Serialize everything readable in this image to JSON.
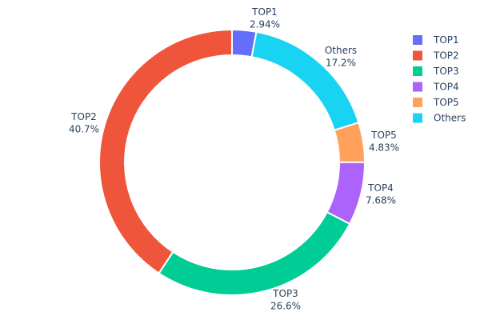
{
  "chart_data": {
    "type": "pie",
    "hole": true,
    "title": "",
    "direction": "clockwise",
    "slices": [
      {
        "label": "TOP1",
        "value": 2.94,
        "text": "2.94%",
        "color": "#636efa"
      },
      {
        "label": "Others",
        "value": 17.2,
        "text": "17.2%",
        "color": "#19d3f3"
      },
      {
        "label": "TOP5",
        "value": 4.83,
        "text": "4.83%",
        "color": "#FFA15A"
      },
      {
        "label": "TOP4",
        "value": 7.68,
        "text": "7.68%",
        "color": "#ab63fa"
      },
      {
        "label": "TOP3",
        "value": 26.6,
        "text": "26.6%",
        "color": "#00cc96"
      },
      {
        "label": "TOP2",
        "value": 40.7,
        "text": "40.7%",
        "color": "#EF553B"
      }
    ],
    "legend": {
      "placement": "top-right",
      "items": [
        {
          "label": "TOP1",
          "color": "#636efa"
        },
        {
          "label": "TOP2",
          "color": "#EF553B"
        },
        {
          "label": "TOP3",
          "color": "#00cc96"
        },
        {
          "label": "TOP4",
          "color": "#ab63fa"
        },
        {
          "label": "TOP5",
          "color": "#FFA15A"
        },
        {
          "label": "Others",
          "color": "#19d3f3"
        }
      ]
    }
  }
}
